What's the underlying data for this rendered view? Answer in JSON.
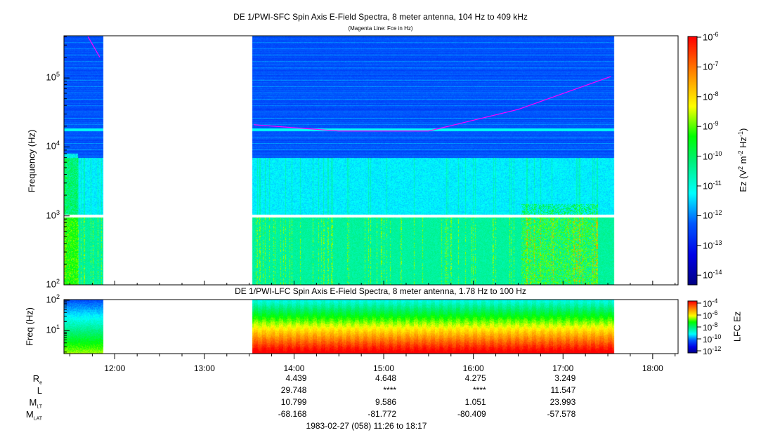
{
  "chart_data": [
    {
      "type": "heatmap",
      "title": "DE 1/PWI-SFC  Spin Axis E-Field Spectra, 8 meter antenna, 104 Hz to 409 kHz",
      "subtitle": "(Magenta Line: Fce in Hz)",
      "ylabel": "Frequency (Hz)",
      "yscale": "log",
      "ylim": [
        100,
        409000
      ],
      "yticks": [
        {
          "base": "10",
          "exp": "2"
        },
        {
          "base": "10",
          "exp": "3"
        },
        {
          "base": "10",
          "exp": "4"
        },
        {
          "base": "10",
          "exp": "5"
        }
      ],
      "xlim": [
        "11:26",
        "18:17"
      ],
      "data_intervals": [
        [
          "11:26",
          "11:52"
        ],
        [
          "13:32",
          "17:34"
        ]
      ],
      "colorbar": {
        "label": "Ez (V",
        "label_sup1": "2",
        "label_mid": " m",
        "label_sup2": "-2",
        "label_mid2": " Hz",
        "label_sup3": "-1",
        "label_end": ")",
        "scale": "log",
        "range": [
          3e-15,
          1e-06
        ],
        "ticks": [
          {
            "base": "10",
            "exp": "-6"
          },
          {
            "base": "10",
            "exp": "-7"
          },
          {
            "base": "10",
            "exp": "-8"
          },
          {
            "base": "10",
            "exp": "-9"
          },
          {
            "base": "10",
            "exp": "-10"
          },
          {
            "base": "10",
            "exp": "-11"
          },
          {
            "base": "10",
            "exp": "-12"
          },
          {
            "base": "10",
            "exp": "-13"
          },
          {
            "base": "10",
            "exp": "-14"
          }
        ]
      },
      "fce_line": {
        "color": "#ff00ff",
        "points": [
          [
            "11:42",
            400000
          ],
          [
            "11:50",
            200000
          ],
          [
            "13:33",
            21000
          ],
          [
            "14:30",
            17000
          ],
          [
            "15:30",
            17000
          ],
          [
            "16:30",
            35000
          ],
          [
            "17:32",
            105000
          ]
        ]
      }
    },
    {
      "type": "heatmap",
      "title": "DE 1/PWI-LFC  Spin Axis E-Field Spectra, 8 meter antenna, 1.78 Hz to 100 Hz",
      "ylabel": "Freq (Hz)",
      "yscale": "log",
      "ylim": [
        1.78,
        100
      ],
      "yticks": [
        {
          "base": "10",
          "exp": "1"
        },
        {
          "base": "10",
          "exp": "2"
        }
      ],
      "colorbar": {
        "label": "LFC Ez",
        "scale": "log",
        "range": [
          1e-12,
          0.0001
        ],
        "ticks": [
          {
            "base": "10",
            "exp": "-4"
          },
          {
            "base": "10",
            "exp": "-6"
          },
          {
            "base": "10",
            "exp": "-8"
          },
          {
            "base": "10",
            "exp": "-10"
          },
          {
            "base": "10",
            "exp": "-12"
          }
        ]
      }
    }
  ],
  "xaxis": {
    "ticks": [
      "12:00",
      "13:00",
      "14:00",
      "15:00",
      "16:00",
      "17:00",
      "18:00"
    ]
  },
  "ephemeris": {
    "rows": [
      {
        "label": "R",
        "sub": "e",
        "values": [
          "4.439",
          "4.648",
          "4.275",
          "3.249"
        ]
      },
      {
        "label": "L",
        "sub": "",
        "values": [
          "29.748",
          "****",
          "****",
          "11.547"
        ]
      },
      {
        "label": "M",
        "sub": "LT",
        "values": [
          "10.799",
          "9.586",
          "1.051",
          "23.993"
        ]
      },
      {
        "label": "M",
        "sub": "LAT",
        "values": [
          "-68.168",
          "-81.772",
          "-80.409",
          "-57.578"
        ]
      }
    ],
    "columns": [
      "14:00",
      "15:00",
      "16:00",
      "17:00"
    ]
  },
  "footer": "1983-02-27 (058) 11:26 to 18:17",
  "colors": {
    "fce": "#ff00ff",
    "gap": "#ffffff"
  }
}
